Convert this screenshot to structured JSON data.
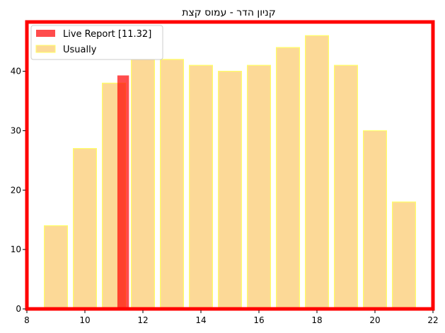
{
  "chart_data": {
    "type": "bar",
    "title": "קניון הדר -  עמוס קצת",
    "xlim": [
      8,
      22
    ],
    "ylim": [
      0,
      48.3
    ],
    "xticks": [
      8,
      10,
      12,
      14,
      16,
      18,
      20,
      22
    ],
    "yticks": [
      0,
      10,
      20,
      30,
      40
    ],
    "grid": false,
    "legend_position": "top-left",
    "series": [
      {
        "name": "Usually",
        "color": "#fbc96b",
        "edge_color": "#ffff66",
        "opacity": 0.7,
        "x": [
          9,
          10,
          11,
          12,
          13,
          14,
          15,
          16,
          17,
          18,
          19,
          20,
          21
        ],
        "values": [
          14,
          27,
          38,
          42,
          42,
          41,
          40,
          41,
          44,
          46,
          41,
          30,
          18
        ]
      },
      {
        "name": "Live Report [11.32]",
        "color": "#ff0000",
        "opacity": 0.7,
        "x": [
          11.32
        ],
        "values": [
          39.3
        ]
      }
    ],
    "frame_color": "#ff0000"
  }
}
